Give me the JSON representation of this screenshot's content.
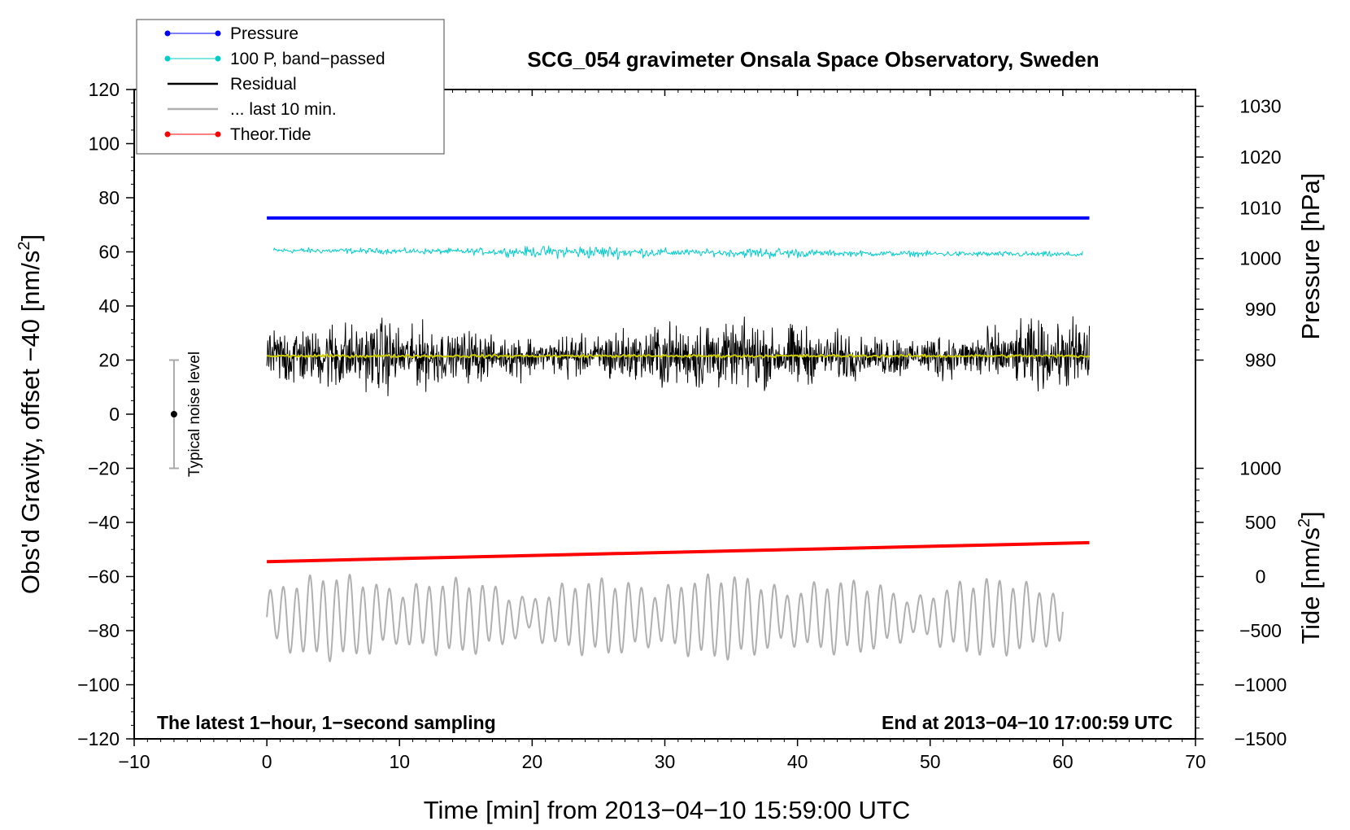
{
  "chart_data": {
    "type": "line",
    "title": "SCG_054 gravimeter Onsala Space Observatory, Sweden",
    "xlabel": "Time [min] from 2013−04−10 15:59:00 UTC",
    "ylabel": "Obs'd Gravity, offset −40 [nm/s²]",
    "xlim": [
      -10,
      70
    ],
    "ylim": [
      -120,
      120
    ],
    "x_ticks": [
      -10,
      0,
      10,
      20,
      30,
      40,
      50,
      60,
      70
    ],
    "x_tick_labels": [
      "−10",
      "0",
      "10",
      "20",
      "30",
      "40",
      "50",
      "60",
      "70"
    ],
    "y_ticks": [
      -120,
      -100,
      -80,
      -60,
      -40,
      -20,
      0,
      20,
      40,
      60,
      80,
      100,
      120
    ],
    "y_tick_labels": [
      "−120",
      "−100",
      "−80",
      "−60",
      "−40",
      "−20",
      "0",
      "20",
      "40",
      "60",
      "80",
      "100",
      "120"
    ],
    "right_axis_pressure": {
      "label": "Pressure [hPa]",
      "ticks": [
        980,
        990,
        1000,
        1010,
        1020,
        1030
      ],
      "tick_labels": [
        "980",
        "990",
        "1000",
        "1010",
        "1020",
        "1030"
      ],
      "left_equivalent": {
        "980": 20,
        "1030": 113.8
      }
    },
    "right_axis_tide": {
      "label": "Tide [nm/s²]",
      "ticks": [
        -1500,
        -1000,
        -500,
        0,
        500,
        1000
      ],
      "tick_labels": [
        "−1500",
        "−1000",
        "−500",
        "0",
        "500",
        "1000"
      ],
      "left_equivalent": {
        "-1500": -120,
        "1000": -20
      }
    },
    "legend": [
      {
        "label": "Pressure",
        "color": "#0000ff",
        "marker": "dot"
      },
      {
        "label": "100 P, band−passed",
        "color": "#00cccc",
        "marker": "dot"
      },
      {
        "label": "Residual",
        "color": "#000000",
        "marker": "line"
      },
      {
        "label": "... last 10 min.",
        "color": "#b0b0b0",
        "marker": "line"
      },
      {
        "label": "Theor.Tide",
        "color": "#ff0000",
        "marker": "dot"
      }
    ],
    "series": [
      {
        "name": "Pressure",
        "color": "#0000ff",
        "x": [
          0,
          62
        ],
        "y": [
          72.5,
          72.5
        ]
      },
      {
        "name": "100 P, band-passed",
        "color": "#00cccc",
        "x_range": [
          0.5,
          61.5
        ],
        "mean": 60.5,
        "amplitude": 2.5
      },
      {
        "name": "Residual",
        "color": "#000000",
        "x_range": [
          0,
          62
        ],
        "mean": 21.5,
        "amplitude": 13
      },
      {
        "name": "Residual smoothed",
        "color": "#cccc00",
        "x_range": [
          0,
          62
        ],
        "mean": 21.5,
        "amplitude": 0.8
      },
      {
        "name": "Theor.Tide",
        "color": "#ff0000",
        "x": [
          0,
          62
        ],
        "y": [
          -54.5,
          -47.5
        ]
      },
      {
        "name": "... last 10 min.",
        "color": "#b0b0b0",
        "x_range": [
          0,
          60
        ],
        "mean": -75,
        "amplitude": 9
      }
    ],
    "noise_bar": {
      "label": "Typical noise level",
      "x": -7,
      "center": 0,
      "low": -20,
      "high": 20
    },
    "annotations": {
      "left": "The latest 1−hour, 1−second sampling",
      "right": "End at 2013−04−10 17:00:59 UTC"
    }
  }
}
